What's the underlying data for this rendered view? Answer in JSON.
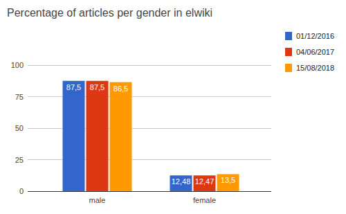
{
  "chart_data": {
    "type": "bar",
    "title": "Percentage of articles per gender in elwiki",
    "categories": [
      "male",
      "female"
    ],
    "series": [
      {
        "name": "01/12/2016",
        "color": "#3366cc",
        "values": [
          87.5,
          12.48
        ],
        "value_labels": [
          "87,5",
          "12,48"
        ]
      },
      {
        "name": "04/06/2017",
        "color": "#dc3912",
        "values": [
          87.5,
          12.47
        ],
        "value_labels": [
          "87,5",
          "12,47"
        ]
      },
      {
        "name": "15/08/2018",
        "color": "#ff9900",
        "values": [
          86.5,
          13.5
        ],
        "value_labels": [
          "86,5",
          "13,5"
        ]
      }
    ],
    "ylim": [
      0,
      100
    ],
    "yticks": [
      0,
      25,
      50,
      75,
      100
    ],
    "grid": true,
    "legend": "right",
    "data_labels": true
  }
}
